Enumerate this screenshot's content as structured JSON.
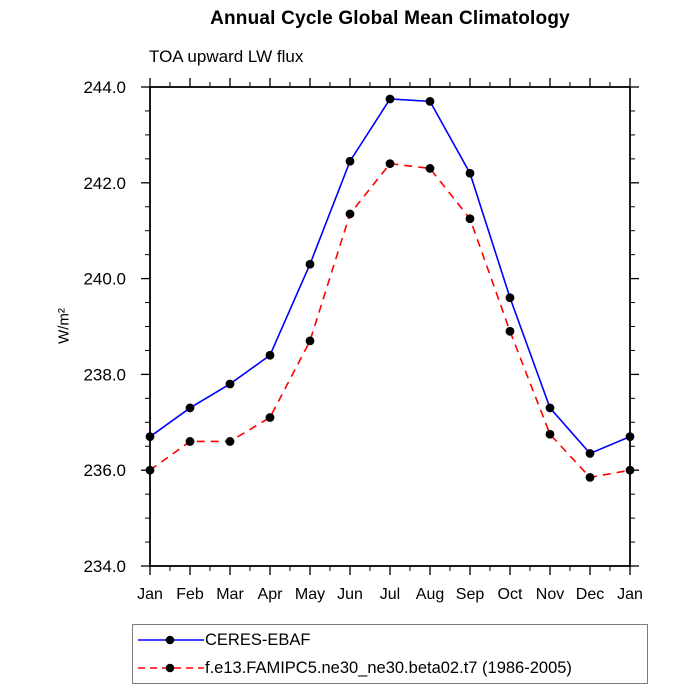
{
  "chart_data": {
    "type": "line",
    "title": "Annual Cycle Global Mean Climatology",
    "subtitle": "TOA upward LW flux",
    "ylabel": "W/m²",
    "xlabel": "",
    "categories": [
      "Jan",
      "Feb",
      "Mar",
      "Apr",
      "May",
      "Jun",
      "Jul",
      "Aug",
      "Sep",
      "Oct",
      "Nov",
      "Dec",
      "Jan"
    ],
    "ylim": [
      234.0,
      244.0
    ],
    "y_major_ticks": [
      234.0,
      236.0,
      238.0,
      240.0,
      242.0,
      244.0
    ],
    "y_minor_step": 0.5,
    "y_tick_format_decimals": 1,
    "grid": false,
    "legend_position": "bottom-left",
    "frame_color": "#000000",
    "marker_color": "#000000",
    "series": [
      {
        "name": "CERES-EBAF",
        "color": "#0000ff",
        "style": "solid",
        "marker": "filled-circle",
        "values": [
          236.7,
          237.3,
          237.8,
          238.4,
          240.3,
          242.45,
          243.75,
          243.7,
          242.2,
          239.6,
          237.3,
          236.35,
          236.7
        ]
      },
      {
        "name": "f.e13.FAMIPC5.ne30_ne30.beta02.t7 (1986-2005)",
        "color": "#ff0000",
        "style": "dashed",
        "marker": "filled-circle",
        "values": [
          236.0,
          236.6,
          236.6,
          237.1,
          238.7,
          241.35,
          242.4,
          242.3,
          241.25,
          238.9,
          236.75,
          235.85,
          236.0
        ]
      }
    ]
  }
}
